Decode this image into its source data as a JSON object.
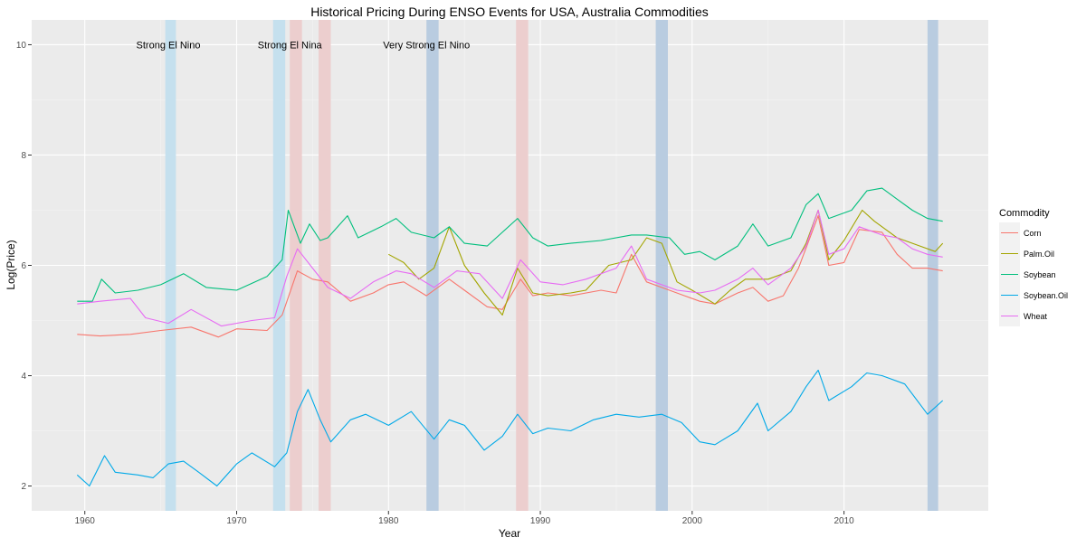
{
  "chart_data": {
    "type": "line",
    "title": "Historical Pricing During ENSO Events for USA, Australia Commodities",
    "xlabel": "Year",
    "ylabel": "Log(Price)",
    "xlim": [
      1956.5,
      2019.5
    ],
    "ylim": [
      1.55,
      10.45
    ],
    "x_ticks": [
      1960,
      1970,
      1980,
      1990,
      2000,
      2010
    ],
    "y_ticks": [
      2,
      4,
      6,
      8,
      10
    ],
    "grid": true,
    "legend": {
      "title": "Commodity",
      "position": "right",
      "entries": [
        "Corn",
        "Palm.Oil",
        "Soybean",
        "Soybean.Oil",
        "Wheat"
      ]
    },
    "annotations": [
      {
        "text": "Strong El Nino",
        "x": 1965.5,
        "y": 10
      },
      {
        "text": "Strong El Nina",
        "x": 1973.5,
        "y": 10
      },
      {
        "text": "Very Strong El Nino",
        "x": 1982.5,
        "y": 10
      }
    ],
    "event_bands": [
      {
        "start": 1965.3,
        "end": 1966.0,
        "kind": "El Nino",
        "color": "#c5e0ee"
      },
      {
        "start": 1972.4,
        "end": 1973.2,
        "kind": "El Nino",
        "color": "#c5e0ee"
      },
      {
        "start": 1973.5,
        "end": 1974.3,
        "kind": "La Nina",
        "color": "#eccece"
      },
      {
        "start": 1975.4,
        "end": 1976.2,
        "kind": "La Nina",
        "color": "#eccece"
      },
      {
        "start": 1982.5,
        "end": 1983.3,
        "kind": "Very Strong El Nino",
        "color": "#b9cce0"
      },
      {
        "start": 1988.4,
        "end": 1989.2,
        "kind": "La Nina",
        "color": "#eccece"
      },
      {
        "start": 1997.6,
        "end": 1998.4,
        "kind": "Very Strong El Nino",
        "color": "#b9cce0"
      },
      {
        "start": 2015.5,
        "end": 2016.2,
        "kind": "Very Strong El Nino",
        "color": "#b9cce0"
      }
    ],
    "series": [
      {
        "name": "Corn",
        "color": "#F8766D",
        "x": [
          1959.5,
          1961,
          1963,
          1965,
          1967,
          1968.8,
          1970,
          1972,
          1973,
          1974,
          1975,
          1976,
          1977.5,
          1979,
          1980,
          1981,
          1982.5,
          1984,
          1985,
          1986.5,
          1987.5,
          1988.7,
          1989.5,
          1990.5,
          1992,
          1994,
          1995,
          1996,
          1997,
          1998.5,
          1999.5,
          2000.5,
          2001.5,
          2003,
          2004,
          2005,
          2006,
          2007,
          2008.3,
          2009,
          2010,
          2011,
          2012.5,
          2013.5,
          2014.5,
          2015.5,
          2016.5
        ],
        "values": [
          4.75,
          4.72,
          4.75,
          4.82,
          4.88,
          4.7,
          4.85,
          4.82,
          5.1,
          5.9,
          5.75,
          5.7,
          5.35,
          5.5,
          5.65,
          5.7,
          5.45,
          5.75,
          5.55,
          5.25,
          5.2,
          5.75,
          5.45,
          5.5,
          5.45,
          5.55,
          5.5,
          6.2,
          5.7,
          5.55,
          5.45,
          5.35,
          5.3,
          5.5,
          5.6,
          5.35,
          5.45,
          5.95,
          6.9,
          6.0,
          6.05,
          6.65,
          6.6,
          6.2,
          5.95,
          5.95,
          5.9
        ]
      },
      {
        "name": "Palm.Oil",
        "color": "#A3A500",
        "x": [
          1980,
          1981,
          1982,
          1983,
          1984,
          1985,
          1986.3,
          1987.5,
          1988.5,
          1989.5,
          1990.5,
          1992,
          1993,
          1994.5,
          1996,
          1997,
          1998,
          1999,
          2000,
          2001.5,
          2002.5,
          2003.5,
          2005,
          2006.5,
          2007.5,
          2008.3,
          2009,
          2010,
          2011.2,
          2012,
          2013.5,
          2015,
          2016,
          2016.5
        ],
        "values": [
          6.2,
          6.05,
          5.75,
          5.95,
          6.7,
          6.0,
          5.5,
          5.1,
          5.95,
          5.5,
          5.45,
          5.5,
          5.55,
          6.0,
          6.1,
          6.5,
          6.4,
          5.7,
          5.55,
          5.3,
          5.55,
          5.75,
          5.75,
          5.9,
          6.4,
          7.0,
          6.1,
          6.45,
          7.0,
          6.8,
          6.5,
          6.35,
          6.25,
          6.4
        ]
      },
      {
        "name": "Soybean",
        "color": "#00BF7D",
        "x": [
          1959.5,
          1960.5,
          1961.1,
          1962,
          1963.5,
          1965,
          1966.5,
          1968,
          1970,
          1972,
          1973,
          1973.4,
          1974.2,
          1974.8,
          1975.5,
          1976,
          1977.3,
          1978,
          1979.5,
          1980.5,
          1981.5,
          1983,
          1984,
          1985,
          1986.5,
          1987.5,
          1988.5,
          1989.5,
          1990.5,
          1992,
          1994,
          1996,
          1997,
          1998.5,
          1999.5,
          2000.5,
          2001.5,
          2003,
          2004,
          2005,
          2006.5,
          2007.5,
          2008.3,
          2009,
          2010.5,
          2011.5,
          2012.5,
          2013.5,
          2014.5,
          2015.5,
          2016.5
        ],
        "values": [
          5.35,
          5.35,
          5.75,
          5.5,
          5.55,
          5.65,
          5.85,
          5.6,
          5.55,
          5.8,
          6.1,
          7.0,
          6.4,
          6.75,
          6.45,
          6.5,
          6.9,
          6.5,
          6.7,
          6.85,
          6.6,
          6.5,
          6.7,
          6.4,
          6.35,
          6.6,
          6.85,
          6.5,
          6.35,
          6.4,
          6.45,
          6.55,
          6.55,
          6.5,
          6.2,
          6.25,
          6.1,
          6.35,
          6.75,
          6.35,
          6.5,
          7.1,
          7.3,
          6.85,
          7.0,
          7.35,
          7.4,
          7.2,
          7.0,
          6.85,
          6.8
        ]
      },
      {
        "name": "Soybean.Oil",
        "color": "#00A9E8",
        "x": [
          1959.5,
          1960.3,
          1961.3,
          1962,
          1963.5,
          1964.5,
          1965.5,
          1966.5,
          1967.5,
          1968.7,
          1970,
          1971,
          1972.5,
          1973.3,
          1974,
          1974.7,
          1975.5,
          1976.2,
          1977.5,
          1978.5,
          1980,
          1981.5,
          1983,
          1984,
          1985,
          1986.3,
          1987.5,
          1988.5,
          1989.5,
          1990.5,
          1992,
          1993.5,
          1995,
          1996.5,
          1998,
          1999.3,
          2000.5,
          2001.5,
          2003,
          2004.3,
          2005,
          2006.5,
          2007.5,
          2008.3,
          2009,
          2010.5,
          2011.5,
          2012.5,
          2014,
          2015.5,
          2016.5
        ],
        "values": [
          2.2,
          2.0,
          2.55,
          2.25,
          2.2,
          2.15,
          2.4,
          2.45,
          2.25,
          2.0,
          2.4,
          2.6,
          2.35,
          2.6,
          3.35,
          3.75,
          3.2,
          2.8,
          3.2,
          3.3,
          3.1,
          3.35,
          2.85,
          3.2,
          3.1,
          2.65,
          2.9,
          3.3,
          2.95,
          3.05,
          3.0,
          3.2,
          3.3,
          3.25,
          3.3,
          3.15,
          2.8,
          2.75,
          3.0,
          3.5,
          3.0,
          3.35,
          3.8,
          4.1,
          3.55,
          3.8,
          4.05,
          4.0,
          3.85,
          3.3,
          3.55
        ]
      },
      {
        "name": "Wheat",
        "color": "#E76BF3",
        "x": [
          1959.5,
          1961,
          1963,
          1964,
          1965.5,
          1967,
          1969,
          1971,
          1972.5,
          1973.3,
          1974,
          1975,
          1976,
          1977.5,
          1979,
          1980.5,
          1981.5,
          1983,
          1984.5,
          1986,
          1987.5,
          1988.7,
          1990,
          1991.5,
          1993,
          1995,
          1996,
          1997,
          1999,
          2000.5,
          2001.5,
          2003,
          2004,
          2005,
          2006.5,
          2007.5,
          2008.3,
          2009,
          2010,
          2011,
          2012.5,
          2013.5,
          2014.5,
          2015.5,
          2016.5
        ],
        "values": [
          5.3,
          5.35,
          5.4,
          5.05,
          4.95,
          5.2,
          4.9,
          5.0,
          5.05,
          5.8,
          6.3,
          5.95,
          5.6,
          5.4,
          5.7,
          5.9,
          5.85,
          5.6,
          5.9,
          5.85,
          5.4,
          6.1,
          5.7,
          5.65,
          5.75,
          5.95,
          6.35,
          5.75,
          5.55,
          5.5,
          5.55,
          5.75,
          5.95,
          5.65,
          5.95,
          6.35,
          7.0,
          6.2,
          6.3,
          6.7,
          6.55,
          6.5,
          6.3,
          6.2,
          6.15
        ]
      }
    ]
  }
}
